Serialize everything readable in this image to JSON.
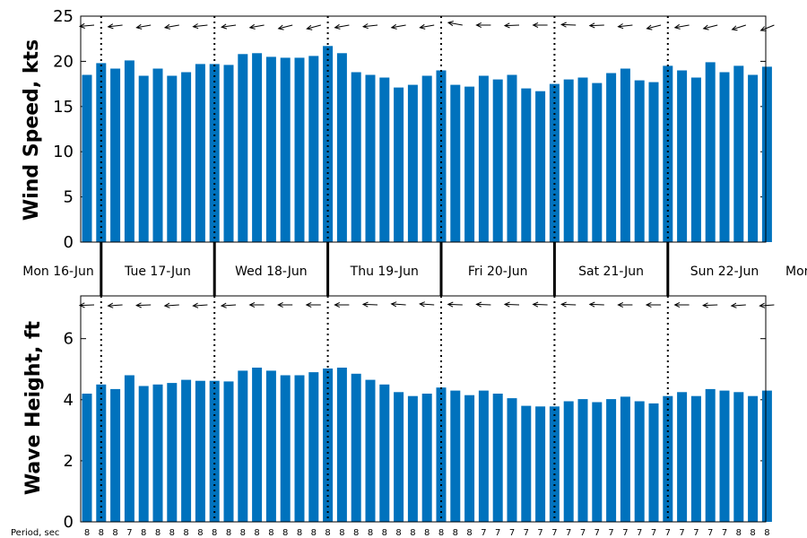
{
  "chart_data": [
    {
      "type": "bar",
      "ylabel": "Wind Speed, kts",
      "ylim": [
        0,
        25
      ],
      "yticks": [
        0,
        5,
        10,
        15,
        20,
        25
      ],
      "grid": false,
      "bar_color": "#0072BD",
      "values": [
        18.5,
        19.8,
        19.2,
        20.1,
        18.4,
        19.2,
        18.4,
        18.8,
        19.7,
        19.7,
        19.6,
        20.8,
        20.9,
        20.5,
        20.4,
        20.4,
        20.6,
        21.7,
        20.9,
        18.8,
        18.5,
        18.2,
        17.1,
        17.4,
        18.4,
        19.0,
        17.4,
        17.2,
        18.4,
        18.0,
        18.5,
        17.0,
        16.7,
        17.5,
        18.0,
        18.2,
        17.6,
        18.7,
        19.2,
        17.9,
        17.7,
        19.5,
        19.0,
        18.2,
        19.9,
        18.8,
        19.5,
        18.5,
        19.4
      ]
    },
    {
      "type": "bar",
      "ylabel": "Wave Height, ft",
      "ylim": [
        0,
        7.4
      ],
      "yticks": [
        0,
        2,
        4,
        6
      ],
      "grid": false,
      "bar_color": "#0072BD",
      "values": [
        4.2,
        4.5,
        4.35,
        4.8,
        4.45,
        4.5,
        4.55,
        4.65,
        4.62,
        4.62,
        4.6,
        4.95,
        5.05,
        4.95,
        4.8,
        4.8,
        4.9,
        5.02,
        5.05,
        4.85,
        4.65,
        4.5,
        4.25,
        4.12,
        4.2,
        4.4,
        4.3,
        4.15,
        4.3,
        4.2,
        4.05,
        3.8,
        3.78,
        3.78,
        3.95,
        4.02,
        3.92,
        4.02,
        4.1,
        3.95,
        3.88,
        4.12,
        4.25,
        4.12,
        4.35,
        4.3,
        4.25,
        4.12,
        4.3
      ]
    }
  ],
  "days": [
    "Mon 16-Jun",
    "Tue 17-Jun",
    "Wed 18-Jun",
    "Thu 19-Jun",
    "Fri 20-Jun",
    "Sat 21-Jun",
    "Sun 22-Jun",
    "Mon"
  ],
  "period_label": "Period, sec",
  "periods": [
    "8",
    "8",
    "8",
    "7",
    "8",
    "8",
    "8",
    "8",
    "8",
    "8",
    "8",
    "8",
    "8",
    "8",
    "8",
    "8",
    "8",
    "8",
    "8",
    "8",
    "8",
    "8",
    "8",
    "8",
    "8",
    "8",
    "8",
    "8",
    "7",
    "7",
    "7",
    "7",
    "7",
    "7",
    "7",
    "7",
    "7",
    "7",
    "7",
    "7",
    "7",
    "7",
    "7",
    "7",
    "7",
    "7",
    "8",
    "8",
    "8"
  ],
  "wind_direction_deg": [
    85,
    82,
    83,
    85,
    80,
    82,
    80,
    78,
    84,
    86,
    82,
    80,
    80,
    78,
    76,
    78,
    75,
    78,
    80,
    86,
    84,
    85,
    80,
    82,
    80,
    78,
    100,
    95,
    90,
    92,
    88,
    90,
    90,
    92,
    92,
    90,
    88,
    90,
    84,
    78,
    76,
    78,
    80,
    80,
    76,
    74,
    72,
    70,
    68
  ],
  "wave_direction_deg": [
    88,
    86,
    86,
    88,
    88,
    86,
    86,
    86,
    86,
    86,
    86,
    88,
    90,
    90,
    90,
    90,
    90,
    90,
    90,
    92,
    92,
    94,
    94,
    94,
    94,
    90,
    92,
    92,
    92,
    92,
    92,
    92,
    92,
    92,
    92,
    92,
    92,
    90,
    90,
    90,
    90,
    90,
    90,
    88,
    88,
    86,
    86,
    86,
    86
  ]
}
